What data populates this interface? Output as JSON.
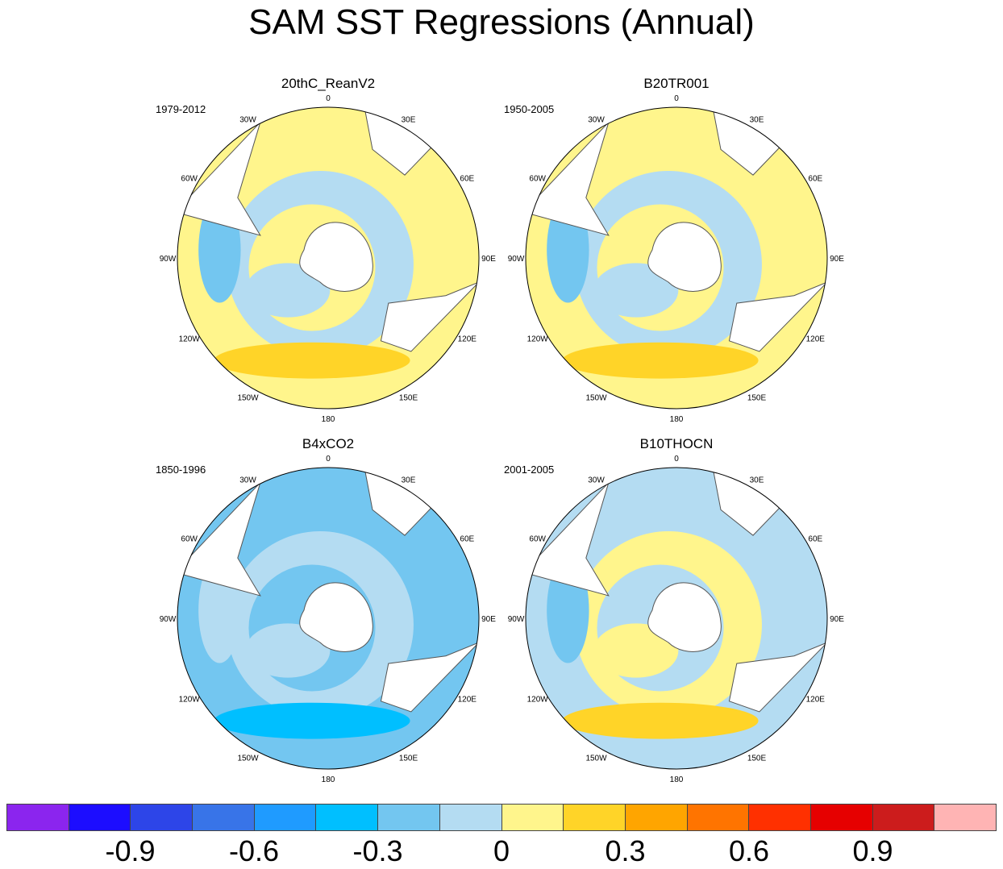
{
  "title": "SAM SST Regressions (Annual)",
  "panels": [
    {
      "title": "20thC_ReanV2",
      "period": "1979-2012",
      "palette": [
        "#fff58c",
        "#b4dcf2",
        "#ffd428",
        "#73c6f0"
      ]
    },
    {
      "title": "B20TR001",
      "period": "1950-2005",
      "palette": [
        "#fff58c",
        "#b4dcf2",
        "#ffd428",
        "#73c6f0"
      ]
    },
    {
      "title": "B4xCO2",
      "period": "1850-1996",
      "palette": [
        "#73c6f0",
        "#b4dcf2",
        "#00bfff",
        "#b4dcf2"
      ]
    },
    {
      "title": "B10THOCN",
      "period": "2001-2005",
      "palette": [
        "#b4dcf2",
        "#fff58c",
        "#ffd428",
        "#73c6f0"
      ]
    }
  ],
  "lon_labels": [
    "0",
    "30E",
    "60E",
    "90E",
    "120E",
    "150E",
    "180",
    "150W",
    "120W",
    "90W",
    "60W",
    "30W"
  ],
  "colorbar": {
    "colors": [
      "#8b25ee",
      "#1c0dff",
      "#2d45e8",
      "#3874e8",
      "#1f9bff",
      "#00bfff",
      "#73c6f0",
      "#b4dcf2",
      "#fff58c",
      "#ffd428",
      "#ffa500",
      "#ff7400",
      "#ff3000",
      "#e60000",
      "#cc1c1c",
      "#ffb4b4"
    ],
    "ticks": [
      "-0.9",
      "-0.6",
      "-0.3",
      "0",
      "0.3",
      "0.6",
      "0.9"
    ]
  }
}
